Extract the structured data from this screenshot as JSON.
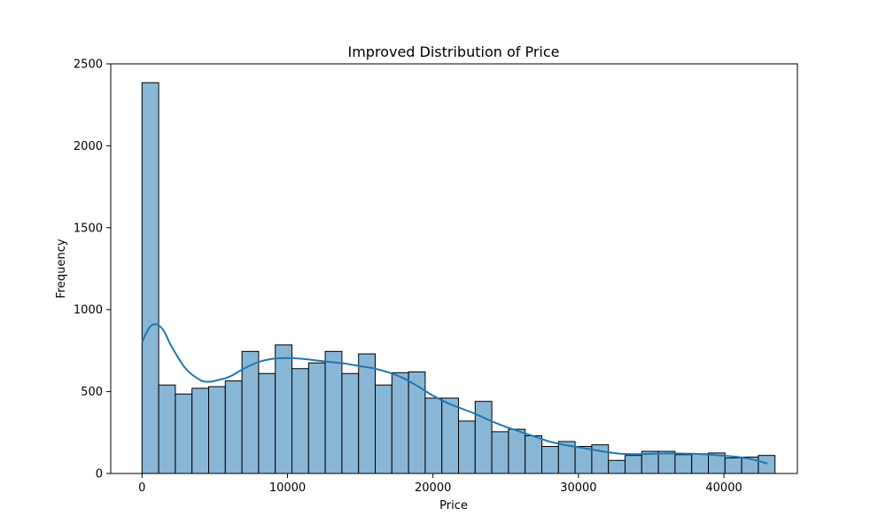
{
  "chart_data": {
    "type": "bar",
    "subtype": "histogram",
    "title": "Improved Distribution of Price",
    "xlabel": "Price",
    "ylabel": "Frequency",
    "xlim": [
      -2150,
      45050
    ],
    "ylim": [
      0,
      2500
    ],
    "xticks": [
      0,
      10000,
      20000,
      30000,
      40000
    ],
    "yticks": [
      0,
      500,
      1000,
      1500,
      2000,
      2500
    ],
    "bin_width": 1145,
    "bins": [
      {
        "x0": 0,
        "x1": 1145,
        "count": 2385
      },
      {
        "x0": 1145,
        "x1": 2290,
        "count": 540
      },
      {
        "x0": 2290,
        "x1": 3435,
        "count": 485
      },
      {
        "x0": 3435,
        "x1": 4580,
        "count": 520
      },
      {
        "x0": 4580,
        "x1": 5725,
        "count": 530
      },
      {
        "x0": 5725,
        "x1": 6870,
        "count": 565
      },
      {
        "x0": 6870,
        "x1": 8015,
        "count": 745
      },
      {
        "x0": 8015,
        "x1": 9160,
        "count": 610
      },
      {
        "x0": 9160,
        "x1": 10305,
        "count": 785
      },
      {
        "x0": 10305,
        "x1": 11450,
        "count": 640
      },
      {
        "x0": 11450,
        "x1": 12595,
        "count": 675
      },
      {
        "x0": 12595,
        "x1": 13740,
        "count": 745
      },
      {
        "x0": 13740,
        "x1": 14885,
        "count": 610
      },
      {
        "x0": 14885,
        "x1": 16030,
        "count": 730
      },
      {
        "x0": 16030,
        "x1": 17175,
        "count": 540
      },
      {
        "x0": 17175,
        "x1": 18320,
        "count": 615
      },
      {
        "x0": 18320,
        "x1": 19465,
        "count": 620
      },
      {
        "x0": 19465,
        "x1": 20610,
        "count": 460
      },
      {
        "x0": 20610,
        "x1": 21755,
        "count": 460
      },
      {
        "x0": 21755,
        "x1": 22900,
        "count": 320
      },
      {
        "x0": 22900,
        "x1": 24045,
        "count": 440
      },
      {
        "x0": 24045,
        "x1": 25190,
        "count": 255
      },
      {
        "x0": 25190,
        "x1": 26335,
        "count": 270
      },
      {
        "x0": 26335,
        "x1": 27480,
        "count": 230
      },
      {
        "x0": 27480,
        "x1": 28625,
        "count": 165
      },
      {
        "x0": 28625,
        "x1": 29770,
        "count": 195
      },
      {
        "x0": 29770,
        "x1": 30915,
        "count": 165
      },
      {
        "x0": 30915,
        "x1": 32060,
        "count": 175
      },
      {
        "x0": 32060,
        "x1": 33205,
        "count": 80
      },
      {
        "x0": 33205,
        "x1": 34350,
        "count": 110
      },
      {
        "x0": 34350,
        "x1": 35495,
        "count": 135
      },
      {
        "x0": 35495,
        "x1": 36640,
        "count": 135
      },
      {
        "x0": 36640,
        "x1": 37785,
        "count": 115
      },
      {
        "x0": 37785,
        "x1": 38930,
        "count": 120
      },
      {
        "x0": 38930,
        "x1": 40075,
        "count": 125
      },
      {
        "x0": 40075,
        "x1": 41220,
        "count": 95
      },
      {
        "x0": 41220,
        "x1": 42365,
        "count": 100
      },
      {
        "x0": 42365,
        "x1": 43510,
        "count": 110
      }
    ],
    "kde": {
      "x": [
        0,
        500,
        1000,
        1500,
        2000,
        3000,
        4000,
        4500,
        5000,
        6000,
        7000,
        8000,
        9000,
        10000,
        11000,
        12000,
        13000,
        14000,
        15000,
        16000,
        17000,
        18000,
        19000,
        20000,
        21000,
        22000,
        23000,
        24000,
        25000,
        26000,
        27000,
        28000,
        29000,
        30000,
        31000,
        32000,
        33000,
        34000,
        35000,
        36000,
        37000,
        38000,
        39000,
        40000,
        41000,
        42000,
        43000
      ],
      "y": [
        800,
        890,
        910,
        870,
        780,
        640,
        570,
        560,
        565,
        590,
        640,
        680,
        700,
        705,
        700,
        690,
        680,
        670,
        655,
        640,
        615,
        580,
        530,
        475,
        430,
        395,
        360,
        320,
        285,
        255,
        225,
        195,
        175,
        160,
        145,
        130,
        120,
        118,
        120,
        122,
        122,
        120,
        115,
        108,
        100,
        85,
        60
      ]
    },
    "colors": {
      "bar_fill": "#8ab6d6",
      "bar_edge": "#000000",
      "kde_line": "#1f77b4"
    },
    "grid": false,
    "legend": "none"
  }
}
